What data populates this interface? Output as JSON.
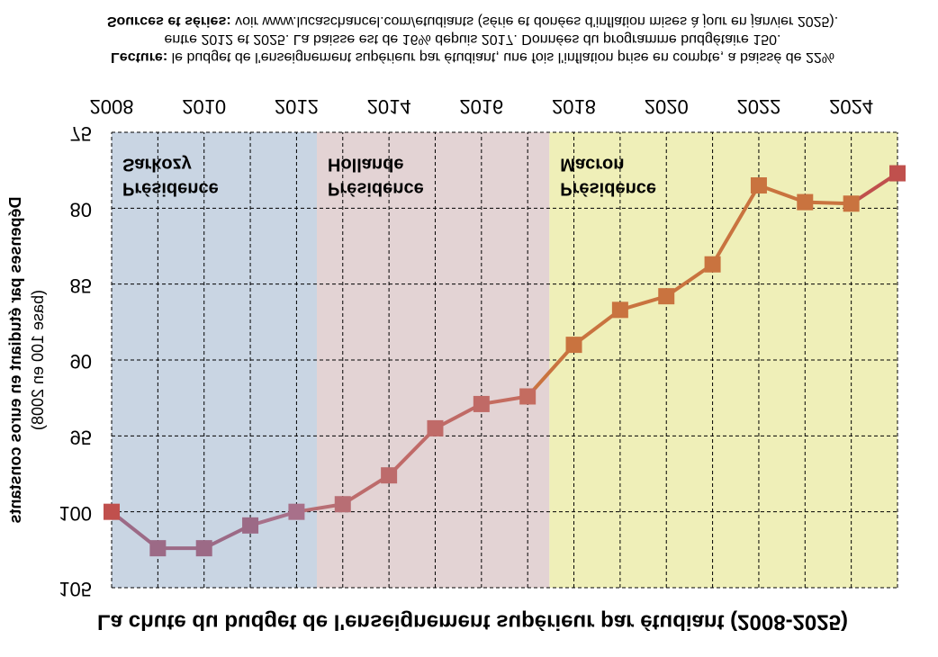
{
  "chart_data": {
    "type": "line",
    "title": "La chute du budget de l'enseignement supérieur par étudiant (2008-2025)",
    "y_label": [
      "Dépenses par étudiant en euros constants",
      "(base 100 en 2008)"
    ],
    "x": [
      2008,
      2009,
      2010,
      2011,
      2012,
      2013,
      2014,
      2015,
      2016,
      2017,
      2018,
      2019,
      2020,
      2021,
      2022,
      2023,
      2024,
      2025
    ],
    "series": [
      {
        "values": [
          100,
          102.4,
          102.4,
          100.9,
          100,
          99.5,
          97.6,
          94.5,
          92.9,
          92.4,
          89.0,
          86.7,
          85.8,
          83.7,
          78.5,
          79.6,
          79.7,
          77.7
        ],
        "colors": [
          "#c0504d",
          "#9c6a86",
          "#9c6a86",
          "#9c6a86",
          "#a8708a",
          "#b86e74",
          "#bd6b6b",
          "#c06a68",
          "#c06a66",
          "#c46c60",
          "#c9733f",
          "#c9733f",
          "#c9733f",
          "#c9733f",
          "#c9733f",
          "#c9733f",
          "#c9733f",
          "#c0504d"
        ]
      }
    ],
    "xlim": [
      2008,
      2025
    ],
    "xticks": [
      2008,
      2010,
      2012,
      2014,
      2016,
      2018,
      2020,
      2022,
      2024
    ],
    "ylim": [
      75,
      105
    ],
    "yticks": [
      75,
      80,
      85,
      90,
      95,
      100,
      105
    ],
    "grid": true,
    "periods": [
      {
        "label": [
          "Présidence",
          "Sarkozy"
        ],
        "start": 2008,
        "end": 2012.44,
        "color": "#c9d5e3"
      },
      {
        "label": [
          "Présidence",
          "Hollande"
        ],
        "start": 2012.44,
        "end": 2017.47,
        "color": "#e3d3d4"
      },
      {
        "label": [
          "Présidence",
          "Macron"
        ],
        "start": 2017.47,
        "end": 2025,
        "color": "#efefb8"
      }
    ],
    "notes": [
      {
        "bold": "Lecture:",
        "text": " le budget de l'enseignement supérieur par étudiant, une fois l'inflation prise en compte, a baissé de 22%"
      },
      {
        "text": "entre 2012 et 2025. La baisse est de 16% depuis 2017. Données du programme budgétaire 150."
      },
      {
        "bold": "Sources et séries:",
        "text": " voir www.lucaschancel.com/etudiants (série et donées d'inflation mises à jour en janvier 2025)."
      }
    ]
  }
}
